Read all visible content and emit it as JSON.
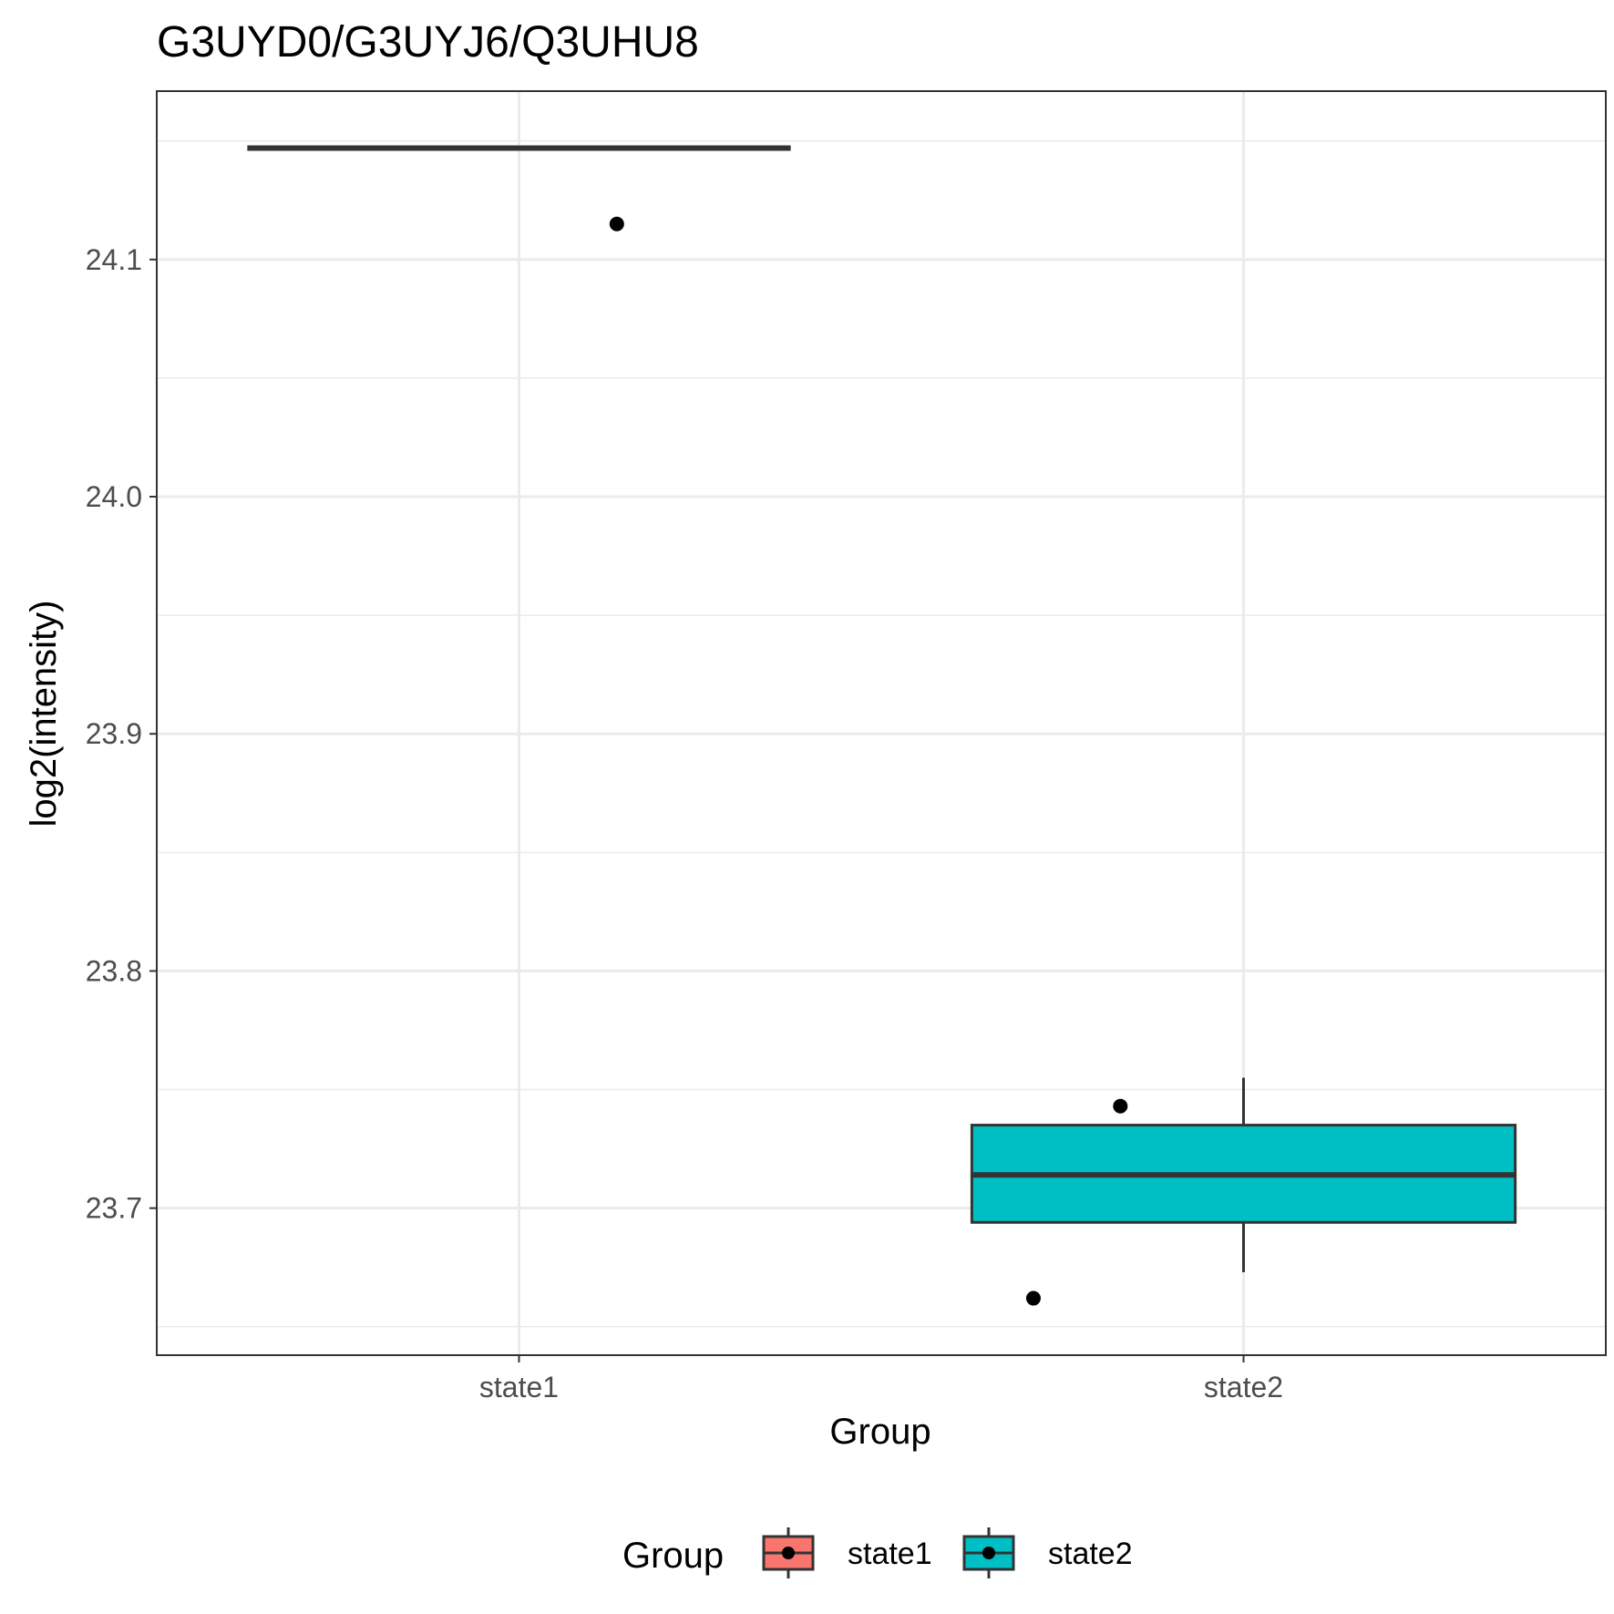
{
  "chart_data": {
    "type": "boxplot",
    "title": "G3UYD0/G3UYJ6/Q3UHU8",
    "xlabel": "Group",
    "ylabel": "log2(intensity)",
    "categories": [
      "state1",
      "state2"
    ],
    "ylim": [
      23.638,
      24.171
    ],
    "y_ticks": [
      23.7,
      23.8,
      23.9,
      24.0,
      24.1
    ],
    "y_tick_labels": [
      "23.7",
      "23.8",
      "23.9",
      "24.0",
      "24.1"
    ],
    "y_minor_ticks": [
      23.65,
      23.75,
      23.85,
      23.95,
      24.05,
      24.15
    ],
    "grid": true,
    "legend_position": "bottom",
    "legend_title": "Group",
    "boxes": [
      {
        "category": "state1",
        "fill": "#F8766D",
        "min": 24.147,
        "q1": 24.147,
        "median": 24.147,
        "q3": 24.147,
        "max": 24.147
      },
      {
        "category": "state2",
        "fill": "#00BFC4",
        "min": 23.673,
        "q1": 23.694,
        "median": 23.714,
        "q3": 23.735,
        "max": 23.755
      }
    ],
    "points": [
      {
        "category": "state1",
        "y": 24.115,
        "jitter": 0.135
      },
      {
        "category": "state2",
        "y": 23.743,
        "jitter": -0.17
      },
      {
        "category": "state2",
        "y": 23.662,
        "jitter": -0.29
      }
    ]
  }
}
